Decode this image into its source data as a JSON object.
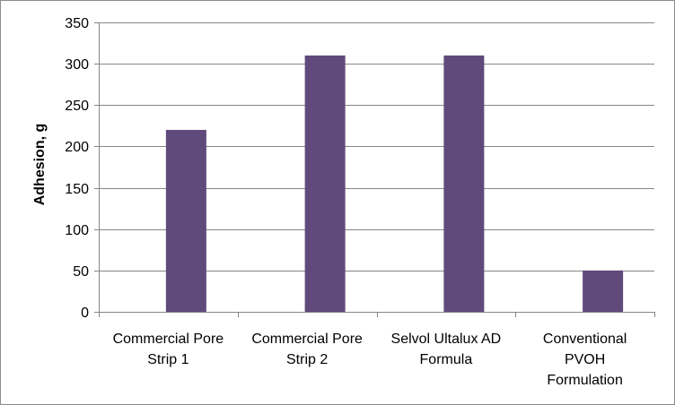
{
  "chart_data": {
    "type": "bar",
    "title": "",
    "xlabel": "",
    "ylabel": "Adhesion, g",
    "categories": [
      [
        "Commercial Pore",
        "Strip 1"
      ],
      [
        "Commercial Pore",
        "Strip 2"
      ],
      [
        "Selvol Ultalux AD",
        "Formula"
      ],
      [
        "Conventional",
        "PVOH",
        "Formulation"
      ]
    ],
    "values": [
      220,
      310,
      310,
      50
    ],
    "ylim": [
      0,
      350
    ],
    "yticks": [
      "0",
      "50",
      "100",
      "150",
      "200",
      "250",
      "300",
      "350"
    ],
    "grid": true,
    "legend": "none",
    "bar_color": "#604a7b",
    "grid_color": "#868686",
    "axis_color": "#868686"
  }
}
